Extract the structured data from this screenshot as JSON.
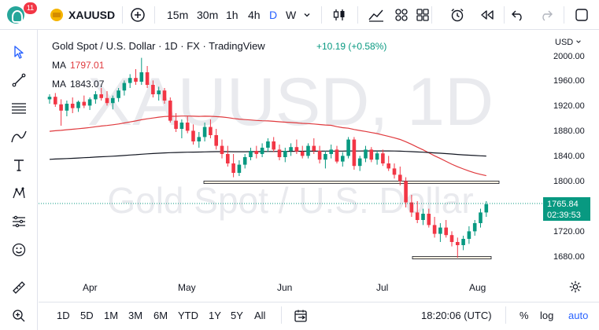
{
  "toolbar": {
    "notifications": "11",
    "symbol": "XAUUSD",
    "timeframes": [
      "15m",
      "30m",
      "1h",
      "4h",
      "D",
      "W"
    ],
    "active_timeframe": "D"
  },
  "legend": {
    "title": "Gold Spot / U.S. Dollar · 1D · FX · TradingView",
    "change": "+10.19 (+0.58%)",
    "ma1_label": "MA",
    "ma1_value": "1797.01",
    "ma2_label": "MA",
    "ma2_value": "1843.07"
  },
  "watermark": {
    "line1": "XAUUSD, 1D",
    "line2": "Gold Spot / U.S. Dollar"
  },
  "price_axis": {
    "currency": "USD",
    "labels": [
      "2000.00",
      "1960.00",
      "1920.00",
      "1880.00",
      "1840.00",
      "1800.00",
      "1720.00",
      "1680.00"
    ],
    "last_price": "1765.84",
    "countdown": "02:39:53"
  },
  "time_axis": {
    "labels": [
      "Apr",
      "May",
      "Jun",
      "Jul",
      "Aug"
    ]
  },
  "bottom": {
    "ranges": [
      "1D",
      "5D",
      "1M",
      "3M",
      "6M",
      "YTD",
      "1Y",
      "5Y",
      "All"
    ],
    "clock": "18:20:06 (UTC)",
    "percent": "%",
    "log": "log",
    "auto": "auto"
  },
  "colors": {
    "up": "#089981",
    "down": "#f23645",
    "ma_fast": "#e03a3e",
    "ma_slow": "#131722",
    "accent": "#2962ff"
  },
  "chart_data": {
    "type": "candlestick",
    "symbol": "XAUUSD",
    "interval": "1D",
    "y_range": [
      1665,
      2010
    ],
    "months": [
      "Apr",
      "May",
      "Jun",
      "Jul",
      "Aug"
    ],
    "candles": [
      [
        1932,
        1940,
        1925,
        1936
      ],
      [
        1936,
        1942,
        1920,
        1924
      ],
      [
        1924,
        1932,
        1890,
        1914
      ],
      [
        1914,
        1930,
        1905,
        1925
      ],
      [
        1925,
        1935,
        1910,
        1918
      ],
      [
        1918,
        1930,
        1912,
        1928
      ],
      [
        1928,
        1938,
        1918,
        1922
      ],
      [
        1922,
        1935,
        1915,
        1932
      ],
      [
        1932,
        1945,
        1925,
        1940
      ],
      [
        1940,
        1950,
        1930,
        1934
      ],
      [
        1934,
        1945,
        1922,
        1926
      ],
      [
        1926,
        1938,
        1916,
        1934
      ],
      [
        1934,
        1950,
        1928,
        1946
      ],
      [
        1946,
        1962,
        1938,
        1958
      ],
      [
        1958,
        1972,
        1950,
        1966
      ],
      [
        1966,
        1980,
        1955,
        1960
      ],
      [
        1960,
        1998,
        1955,
        1975
      ],
      [
        1975,
        1985,
        1950,
        1955
      ],
      [
        1955,
        1962,
        1935,
        1940
      ],
      [
        1940,
        1952,
        1930,
        1946
      ],
      [
        1946,
        1950,
        1925,
        1930
      ],
      [
        1930,
        1935,
        1895,
        1898
      ],
      [
        1898,
        1910,
        1880,
        1885
      ],
      [
        1885,
        1900,
        1870,
        1895
      ],
      [
        1895,
        1905,
        1878,
        1882
      ],
      [
        1882,
        1892,
        1860,
        1865
      ],
      [
        1865,
        1880,
        1855,
        1872
      ],
      [
        1872,
        1895,
        1865,
        1888
      ],
      [
        1888,
        1900,
        1870,
        1875
      ],
      [
        1875,
        1885,
        1852,
        1858
      ],
      [
        1858,
        1868,
        1838,
        1845
      ],
      [
        1845,
        1858,
        1825,
        1830
      ],
      [
        1830,
        1845,
        1808,
        1815
      ],
      [
        1815,
        1835,
        1810,
        1828
      ],
      [
        1828,
        1845,
        1822,
        1840
      ],
      [
        1840,
        1855,
        1835,
        1850
      ],
      [
        1850,
        1858,
        1838,
        1845
      ],
      [
        1845,
        1862,
        1840,
        1855
      ],
      [
        1855,
        1870,
        1848,
        1865
      ],
      [
        1865,
        1872,
        1848,
        1852
      ],
      [
        1852,
        1860,
        1835,
        1840
      ],
      [
        1840,
        1855,
        1832,
        1850
      ],
      [
        1850,
        1862,
        1842,
        1856
      ],
      [
        1856,
        1868,
        1845,
        1849
      ],
      [
        1849,
        1858,
        1838,
        1842
      ],
      [
        1842,
        1862,
        1838,
        1858
      ],
      [
        1858,
        1870,
        1845,
        1850
      ],
      [
        1850,
        1858,
        1830,
        1836
      ],
      [
        1836,
        1850,
        1822,
        1845
      ],
      [
        1845,
        1860,
        1838,
        1852
      ],
      [
        1852,
        1858,
        1830,
        1833
      ],
      [
        1833,
        1848,
        1825,
        1842
      ],
      [
        1842,
        1872,
        1838,
        1868
      ],
      [
        1868,
        1872,
        1820,
        1826
      ],
      [
        1826,
        1842,
        1818,
        1838
      ],
      [
        1838,
        1858,
        1832,
        1852
      ],
      [
        1852,
        1856,
        1832,
        1836
      ],
      [
        1836,
        1850,
        1828,
        1846
      ],
      [
        1846,
        1852,
        1826,
        1830
      ],
      [
        1830,
        1842,
        1818,
        1822
      ],
      [
        1822,
        1830,
        1806,
        1812
      ],
      [
        1812,
        1825,
        1795,
        1802
      ],
      [
        1802,
        1808,
        1760,
        1768
      ],
      [
        1768,
        1780,
        1745,
        1752
      ],
      [
        1752,
        1770,
        1735,
        1740
      ],
      [
        1740,
        1758,
        1732,
        1750
      ],
      [
        1750,
        1758,
        1728,
        1732
      ],
      [
        1732,
        1745,
        1712,
        1718
      ],
      [
        1718,
        1735,
        1705,
        1728
      ],
      [
        1728,
        1740,
        1712,
        1716
      ],
      [
        1716,
        1722,
        1698,
        1705
      ],
      [
        1705,
        1712,
        1680,
        1700
      ],
      [
        1700,
        1715,
        1692,
        1710
      ],
      [
        1710,
        1730,
        1702,
        1722
      ],
      [
        1722,
        1740,
        1715,
        1735
      ],
      [
        1735,
        1758,
        1728,
        1752
      ],
      [
        1752,
        1770,
        1745,
        1765
      ]
    ],
    "ma_fast_value": 1797.01,
    "ma_slow_value": 1843.07,
    "zones": [
      {
        "name": "resistance",
        "low": 1798,
        "high": 1802
      },
      {
        "name": "support",
        "low": 1678,
        "high": 1682
      }
    ]
  }
}
